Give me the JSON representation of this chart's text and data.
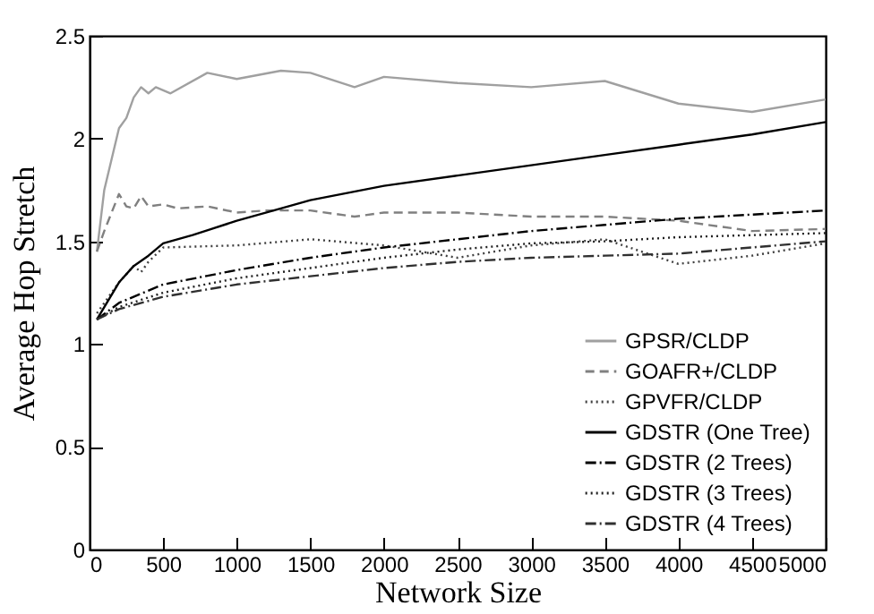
{
  "chart_data": {
    "type": "line",
    "xlabel": "Network Size",
    "ylabel": "Average Hop Stretch",
    "xlim": [
      0,
      5000
    ],
    "ylim": [
      0,
      2.5
    ],
    "xticks": [
      0,
      500,
      1000,
      1500,
      2000,
      2500,
      3000,
      3500,
      4000,
      4500,
      5000
    ],
    "yticks": [
      0,
      0.5,
      1,
      1.5,
      2,
      2.5
    ],
    "grid": false,
    "legend": "bottom right",
    "marker": "none",
    "series": [
      {
        "name": "GPSR/CLDP",
        "color": "#a0a0a0",
        "line_style": "solid",
        "x": [
          50,
          100,
          150,
          200,
          250,
          300,
          350,
          400,
          450,
          550,
          800,
          1000,
          1300,
          1500,
          1800,
          2000,
          2500,
          3000,
          3500,
          4000,
          4500,
          5000
        ],
        "values": [
          1.45,
          1.75,
          1.9,
          2.05,
          2.1,
          2.2,
          2.25,
          2.22,
          2.25,
          2.22,
          2.32,
          2.29,
          2.33,
          2.32,
          2.25,
          2.3,
          2.27,
          2.25,
          2.28,
          2.17,
          2.13,
          2.19
        ]
      },
      {
        "name": "GOAFR+/CLDP",
        "color": "#808080",
        "line_style": "dashed",
        "x": [
          50,
          100,
          200,
          250,
          300,
          350,
          400,
          500,
          600,
          800,
          1000,
          1200,
          1500,
          1800,
          2000,
          2500,
          3000,
          3500,
          4000,
          4500,
          5000
        ],
        "values": [
          1.45,
          1.55,
          1.73,
          1.67,
          1.66,
          1.72,
          1.67,
          1.68,
          1.66,
          1.67,
          1.64,
          1.65,
          1.65,
          1.62,
          1.64,
          1.64,
          1.62,
          1.62,
          1.6,
          1.55,
          1.56
        ]
      },
      {
        "name": "GPVFR/CLDP",
        "color": "#404040",
        "line_style": "dotted",
        "x": [
          50,
          200,
          300,
          350,
          400,
          500,
          1000,
          1500,
          2000,
          2500,
          3000,
          3500,
          4000,
          4500,
          5000
        ],
        "values": [
          1.15,
          1.3,
          1.38,
          1.35,
          1.4,
          1.47,
          1.48,
          1.51,
          1.48,
          1.42,
          1.48,
          1.51,
          1.39,
          1.43,
          1.49
        ]
      },
      {
        "name": "GDSTR (One Tree)",
        "color": "#000000",
        "line_style": "solid",
        "x": [
          50,
          200,
          300,
          400,
          500,
          700,
          1000,
          1300,
          1500,
          2000,
          2500,
          3000,
          3500,
          4000,
          4500,
          5000
        ],
        "values": [
          1.12,
          1.3,
          1.38,
          1.43,
          1.49,
          1.53,
          1.6,
          1.66,
          1.7,
          1.77,
          1.82,
          1.87,
          1.92,
          1.97,
          2.02,
          2.08
        ]
      },
      {
        "name": "GDSTR (2 Trees)",
        "color": "#000000",
        "line_style": "dashdot",
        "x": [
          50,
          200,
          500,
          1000,
          1500,
          2000,
          2500,
          3000,
          3500,
          4000,
          4500,
          5000
        ],
        "values": [
          1.12,
          1.2,
          1.29,
          1.36,
          1.42,
          1.47,
          1.51,
          1.55,
          1.58,
          1.61,
          1.63,
          1.65
        ]
      },
      {
        "name": "GDSTR (3 Trees)",
        "color": "#202020",
        "line_style": "dotted",
        "x": [
          50,
          200,
          500,
          1000,
          1500,
          2000,
          2500,
          3000,
          3500,
          4000,
          4500,
          5000
        ],
        "values": [
          1.12,
          1.18,
          1.25,
          1.32,
          1.37,
          1.42,
          1.46,
          1.49,
          1.5,
          1.52,
          1.53,
          1.54
        ]
      },
      {
        "name": "GDSTR (4 Trees)",
        "color": "#303030",
        "line_style": "dashdot",
        "x": [
          50,
          200,
          500,
          1000,
          1500,
          2000,
          2500,
          3000,
          3500,
          4000,
          4500,
          5000
        ],
        "values": [
          1.12,
          1.17,
          1.23,
          1.29,
          1.33,
          1.37,
          1.4,
          1.42,
          1.43,
          1.44,
          1.47,
          1.5
        ]
      }
    ]
  }
}
